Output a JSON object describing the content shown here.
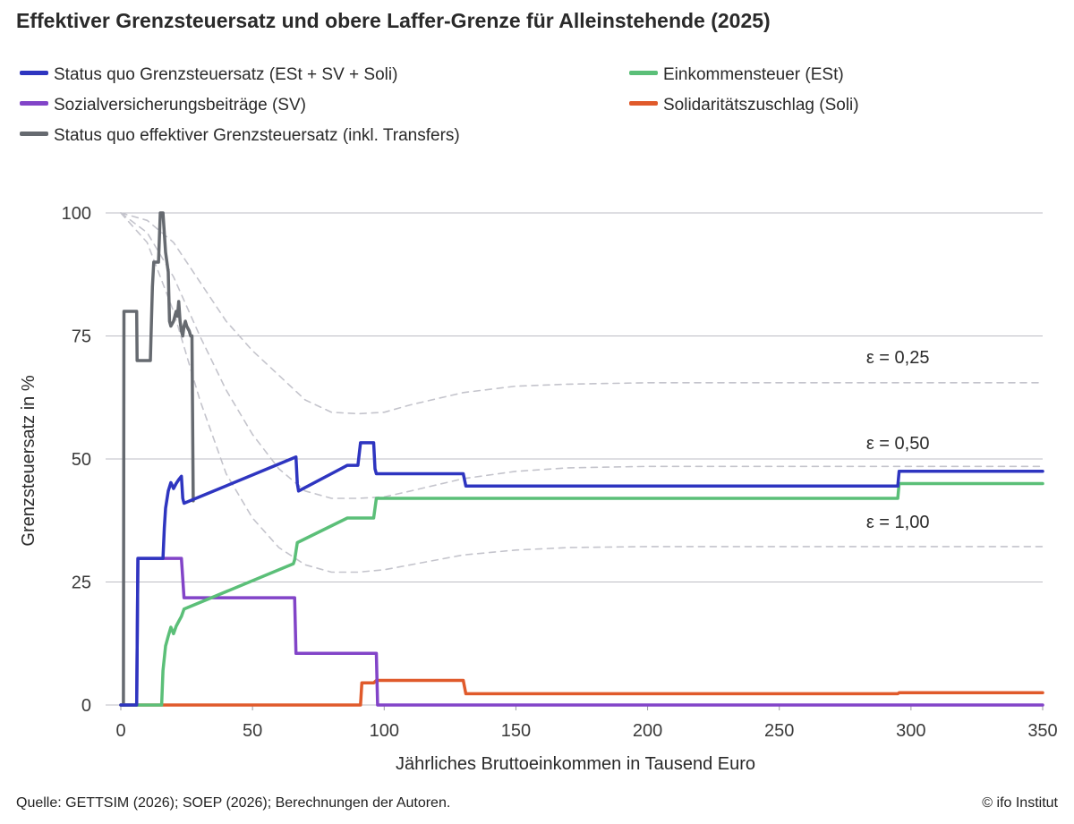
{
  "header": {
    "title": "Effektiver Grenzsteuersatz und obere Laffer-Grenze für Alleinstehende (2025)"
  },
  "footer": {
    "source": "Quelle: GETTSIM (2026); SOEP (2026); Berechnungen der Autoren.",
    "copyright": "© ifo Institut"
  },
  "chart_data": {
    "type": "line",
    "title": "Effektiver Grenzsteuersatz und obere Laffer-Grenze für Alleinstehende (2025)",
    "xlabel": "Jährliches Bruttoeinkommen in Tausend Euro",
    "ylabel": "Grenzsteuersatz in %",
    "xlim": [
      0,
      350
    ],
    "ylim": [
      0,
      100
    ],
    "xticks": [
      "0",
      "50",
      "100",
      "150",
      "200",
      "250",
      "300",
      "350"
    ],
    "yticks": [
      "0",
      "25",
      "50",
      "75",
      "100"
    ],
    "grid": "horizontal",
    "legend_position": "top",
    "series": [
      {
        "name": "Status quo Grenzsteuersatz (ESt + SV + Soli)",
        "color": "#2e35c0",
        "style": "solid",
        "x": [
          0,
          6,
          6.5,
          16,
          16.5,
          17,
          18,
          19,
          20,
          21,
          22,
          23,
          23.5,
          24,
          66.5,
          67,
          67.5,
          86,
          90,
          91,
          96,
          96.5,
          97,
          130,
          131,
          295,
          295.5,
          350
        ],
        "y": [
          0,
          0,
          29.8,
          29.8,
          36,
          40,
          43.5,
          45.2,
          44,
          45,
          45.8,
          46.5,
          42,
          41,
          50.4,
          45,
          43.5,
          48.7,
          48.7,
          53.3,
          53.3,
          48,
          47,
          47,
          44.5,
          44.5,
          47.5,
          47.5
        ]
      },
      {
        "name": "Einkommensteuer (ESt)",
        "color": "#5bbf78",
        "style": "solid",
        "x": [
          0,
          15.5,
          16,
          17,
          18,
          19,
          20,
          21,
          22,
          23,
          24,
          65.5,
          66,
          67,
          86,
          96,
          97,
          295,
          295.5,
          350
        ],
        "y": [
          0,
          0,
          7,
          12,
          14,
          15.8,
          14.5,
          16,
          17,
          18,
          19.5,
          28.7,
          29.5,
          33,
          38,
          38,
          42,
          42,
          45,
          45
        ]
      },
      {
        "name": "Sozialversicherungsbeiträge (SV)",
        "color": "#8244c8",
        "style": "solid",
        "x": [
          0,
          6,
          6.5,
          23,
          24,
          66,
          66.5,
          97,
          97.5,
          350
        ],
        "y": [
          0,
          0,
          29.8,
          29.8,
          21.8,
          21.8,
          10.5,
          10.5,
          0,
          0
        ]
      },
      {
        "name": "Solidaritätszuschlag (Soli)",
        "color": "#e05a2b",
        "style": "solid",
        "x": [
          0,
          91,
          91.5,
          96,
          97,
          130,
          131,
          295,
          295.5,
          350
        ],
        "y": [
          0,
          0,
          4.5,
          4.5,
          5,
          5,
          2.3,
          2.3,
          2.5,
          2.5
        ]
      },
      {
        "name": "Status quo effektiver Grenzsteuersatz (inkl. Transfers)",
        "color": "#666a70",
        "style": "solid",
        "x": [
          0,
          1,
          1.2,
          6,
          6.2,
          11,
          11.2,
          12,
          12.5,
          14,
          14.3,
          15,
          15.5,
          16,
          17,
          18,
          18.5,
          19,
          20,
          21,
          21.5,
          22,
          22.5,
          23,
          23.5,
          24,
          24.5,
          25,
          26,
          26.5,
          27,
          27.5
        ],
        "y": [
          0,
          0,
          80,
          80,
          70,
          70,
          70,
          85,
          90,
          90,
          90,
          100,
          100,
          100,
          92,
          88,
          78,
          77,
          78,
          80,
          79,
          82,
          78,
          76,
          75,
          77,
          78,
          77,
          76,
          75,
          75,
          41.5
        ]
      },
      {
        "name": "ε = 0,25",
        "color": "#c4c4cc",
        "style": "dashed",
        "x": [
          0,
          10,
          20,
          30,
          40,
          50,
          60,
          70,
          80,
          90,
          100,
          110,
          130,
          150,
          170,
          200,
          250,
          300,
          350
        ],
        "y": [
          100,
          98.5,
          94,
          86,
          78,
          72,
          67,
          62,
          59.5,
          59.2,
          59.5,
          61,
          63.5,
          64.8,
          65.2,
          65.5,
          65.5,
          65.5,
          65.5
        ]
      },
      {
        "name": "ε = 0,50",
        "color": "#c4c4cc",
        "style": "dashed",
        "x": [
          0,
          10,
          20,
          30,
          40,
          50,
          60,
          70,
          80,
          90,
          100,
          110,
          130,
          150,
          170,
          200,
          250,
          300,
          350
        ],
        "y": [
          100,
          96,
          87,
          75,
          64,
          55,
          48,
          43.5,
          42,
          42,
          42.3,
          43.5,
          46,
          47.5,
          48.2,
          48.5,
          48.5,
          48.5,
          48.5
        ]
      },
      {
        "name": "ε = 1,00",
        "color": "#c4c4cc",
        "style": "dashed",
        "x": [
          0,
          10,
          20,
          30,
          40,
          50,
          60,
          70,
          80,
          90,
          100,
          110,
          130,
          150,
          170,
          200,
          250,
          300,
          350
        ],
        "y": [
          100,
          94,
          80,
          62,
          47,
          38,
          32,
          28.5,
          27,
          27,
          27.5,
          28.5,
          30.5,
          31.5,
          32,
          32.2,
          32.2,
          32.2,
          32.2
        ]
      }
    ],
    "annotations": [
      {
        "text": "ε = 0,25",
        "x": 295,
        "y": 69.5
      },
      {
        "text": "ε = 0,50",
        "x": 295,
        "y": 52
      },
      {
        "text": "ε = 1,00",
        "x": 295,
        "y": 36
      }
    ]
  }
}
